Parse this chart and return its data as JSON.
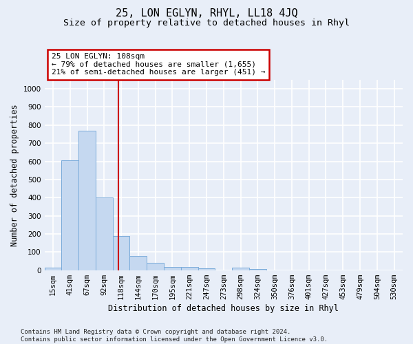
{
  "title": "25, LON EGLYN, RHYL, LL18 4JQ",
  "subtitle": "Size of property relative to detached houses in Rhyl",
  "xlabel": "Distribution of detached houses by size in Rhyl",
  "ylabel": "Number of detached properties",
  "bins": [
    "15sqm",
    "41sqm",
    "67sqm",
    "92sqm",
    "118sqm",
    "144sqm",
    "170sqm",
    "195sqm",
    "221sqm",
    "247sqm",
    "273sqm",
    "298sqm",
    "324sqm",
    "350sqm",
    "376sqm",
    "401sqm",
    "427sqm",
    "453sqm",
    "479sqm",
    "504sqm",
    "530sqm"
  ],
  "values": [
    15,
    605,
    770,
    400,
    190,
    77,
    40,
    18,
    17,
    10,
    0,
    13,
    7,
    0,
    0,
    0,
    0,
    0,
    0,
    0,
    0
  ],
  "bar_color": "#c5d8f0",
  "bar_edgecolor": "#7aabda",
  "vline_x": 3.85,
  "vline_color": "#cc0000",
  "annotation_text": "25 LON EGLYN: 108sqm\n← 79% of detached houses are smaller (1,655)\n21% of semi-detached houses are larger (451) →",
  "annotation_box_color": "white",
  "annotation_box_edgecolor": "#cc0000",
  "ylim": [
    0,
    1050
  ],
  "yticks": [
    0,
    100,
    200,
    300,
    400,
    500,
    600,
    700,
    800,
    900,
    1000
  ],
  "footnote": "Contains HM Land Registry data © Crown copyright and database right 2024.\nContains public sector information licensed under the Open Government Licence v3.0.",
  "background_color": "#e8eef8",
  "axes_background_color": "#e8eef8",
  "grid_color": "white",
  "title_fontsize": 11,
  "subtitle_fontsize": 9.5,
  "label_fontsize": 8.5,
  "tick_fontsize": 7.5,
  "annotation_fontsize": 8,
  "footnote_fontsize": 6.5
}
